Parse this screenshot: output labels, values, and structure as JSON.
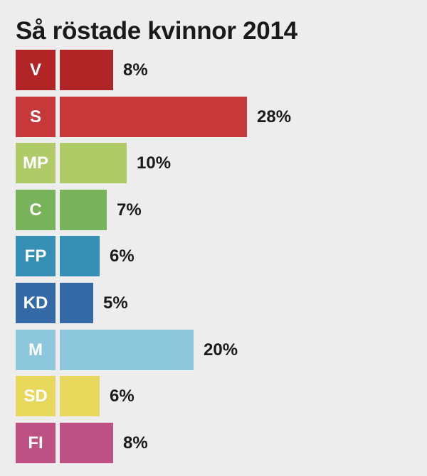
{
  "chart_data": {
    "type": "bar",
    "title": "Så röstade kvinnor 2014",
    "orientation": "horizontal",
    "categories": [
      "V",
      "S",
      "MP",
      "C",
      "FP",
      "KD",
      "M",
      "SD",
      "FI"
    ],
    "values": [
      8,
      28,
      10,
      7,
      6,
      5,
      20,
      6,
      8
    ],
    "value_labels": [
      "8%",
      "28%",
      "10%",
      "7%",
      "6%",
      "5%",
      "20%",
      "6%",
      "8%"
    ],
    "colors": [
      "#b22526",
      "#c7383a",
      "#aecb68",
      "#78b25a",
      "#3690b5",
      "#346aa6",
      "#8cc7dc",
      "#e7d85c",
      "#bd5183"
    ],
    "label_colors": [
      "#b22526",
      "#c7383a",
      "#aecb68",
      "#78b25a",
      "#3690b5",
      "#346aa6",
      "#8cc7dc",
      "#e7d85c",
      "#bd5183"
    ],
    "xlim": [
      0,
      28
    ],
    "grid": false,
    "legend": "none"
  }
}
